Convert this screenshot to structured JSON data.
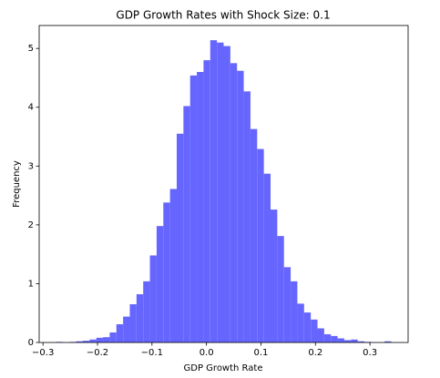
{
  "chart_data": {
    "type": "histogram",
    "title": "GDP Growth Rates with Shock Size: 0.1",
    "x_label": "GDP Growth Rate",
    "y_label": "Frequency",
    "color": "#6666ff",
    "bins": [
      -0.276,
      -0.2637,
      -0.2514,
      -0.2391,
      -0.2268,
      -0.2145,
      -0.2022,
      -0.1899,
      -0.1776,
      -0.1653,
      -0.153,
      -0.1407,
      -0.1284,
      -0.1161,
      -0.1038,
      -0.0915,
      -0.0792,
      -0.0669,
      -0.0546,
      -0.0423,
      -0.03,
      -0.0177,
      -0.0054,
      0.0069,
      0.0192,
      0.0315,
      0.0438,
      0.0561,
      0.0684,
      0.0807,
      0.093,
      0.1053,
      0.1176,
      0.1299,
      0.1422,
      0.1545,
      0.1668,
      0.1791,
      0.1914,
      0.2037,
      0.216,
      0.2283,
      0.2406,
      0.2529,
      0.2652,
      0.2775,
      0.2898,
      0.3021,
      0.3144,
      0.3267,
      0.339
    ],
    "values": [
      0.01,
      0,
      0.01,
      0.02,
      0.03,
      0.05,
      0.08,
      0.09,
      0.17,
      0.31,
      0.44,
      0.65,
      0.82,
      1.04,
      1.48,
      1.98,
      2.38,
      2.61,
      3.55,
      4.02,
      4.54,
      4.6,
      4.8,
      5.14,
      5.1,
      5.04,
      4.75,
      4.62,
      4.27,
      3.63,
      3.29,
      2.87,
      2.26,
      1.81,
      1.28,
      1.04,
      0.66,
      0.51,
      0.39,
      0.24,
      0.14,
      0.11,
      0.07,
      0.04,
      0.05,
      0.02,
      0.01,
      0,
      0,
      0.02
    ],
    "xlim": [
      -0.307,
      0.37
    ],
    "ylim": [
      0,
      5.39
    ],
    "xticks": [
      {
        "value": -0.3,
        "label": "−0.3"
      },
      {
        "value": -0.2,
        "label": "−0.2"
      },
      {
        "value": -0.1,
        "label": "−0.1"
      },
      {
        "value": 0,
        "label": "0.0"
      },
      0.1,
      0.2,
      0.3
    ],
    "yticks": [
      0,
      1,
      2,
      3,
      4,
      5
    ]
  }
}
